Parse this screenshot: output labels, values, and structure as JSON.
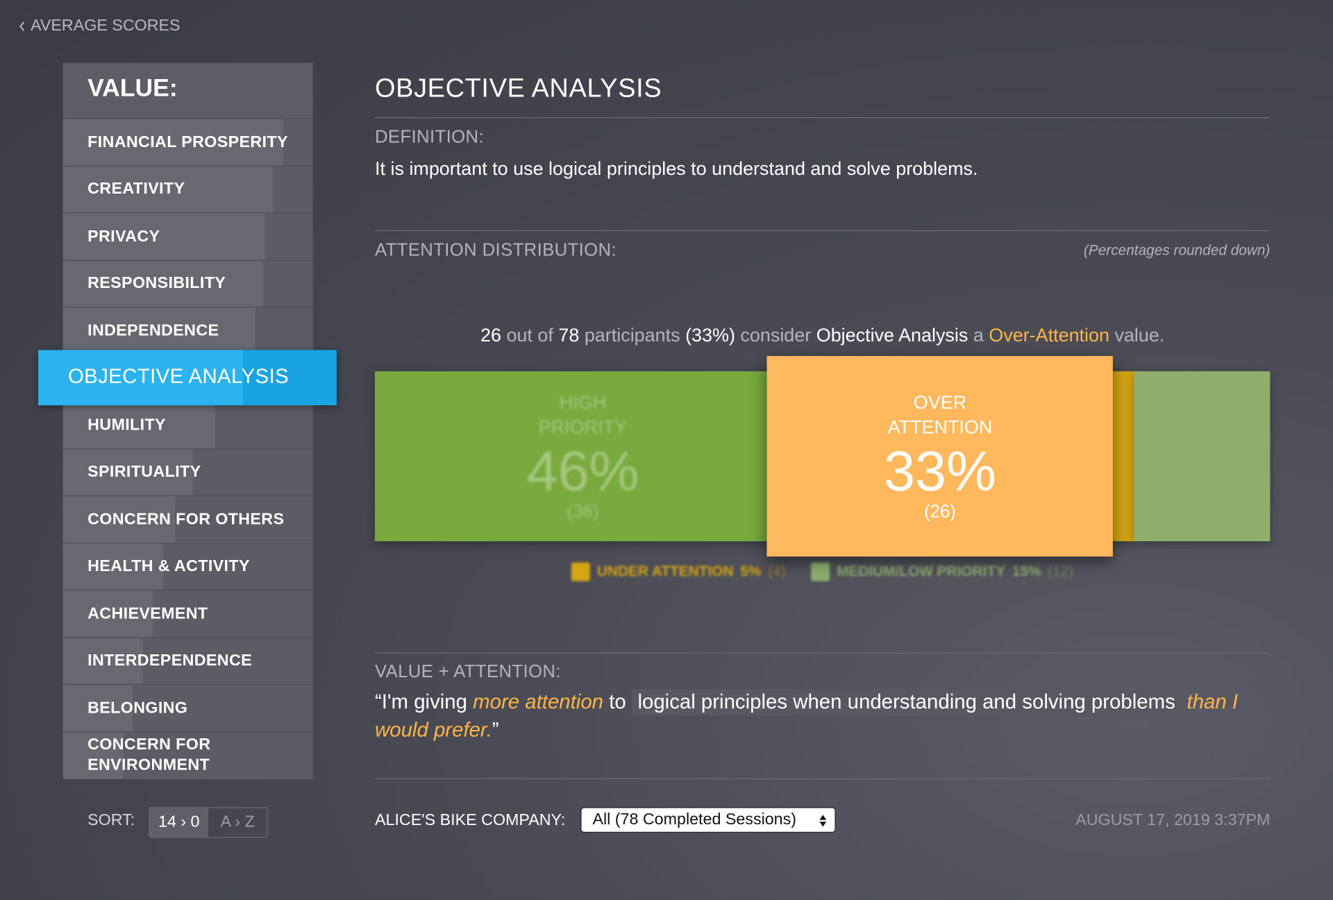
{
  "back_link": "AVERAGE SCORES",
  "sidebar": {
    "title": "VALUE:",
    "selected": 5,
    "items": [
      {
        "label": "FINANCIAL PROSPERITY",
        "bar": 88
      },
      {
        "label": "CREATIVITY",
        "bar": 84
      },
      {
        "label": "PRIVACY",
        "bar": 81
      },
      {
        "label": "RESPONSIBILITY",
        "bar": 80
      },
      {
        "label": "INDEPENDENCE",
        "bar": 77
      },
      {
        "label": "OBJECTIVE ANALYSIS",
        "bar": 72
      },
      {
        "label": "HUMILITY",
        "bar": 61
      },
      {
        "label": "SPIRITUALITY",
        "bar": 52
      },
      {
        "label": "CONCERN FOR OTHERS",
        "bar": 45
      },
      {
        "label": "HEALTH & ACTIVITY",
        "bar": 40
      },
      {
        "label": "ACHIEVEMENT",
        "bar": 36
      },
      {
        "label": "INTERDEPENDENCE",
        "bar": 32
      },
      {
        "label": "BELONGING",
        "bar": 28
      },
      {
        "label": "CONCERN FOR ENVIRONMENT",
        "bar": 24
      }
    ]
  },
  "sort": {
    "label": "SORT:",
    "options": [
      "14 › 0",
      "A › Z"
    ]
  },
  "main": {
    "title": "OBJECTIVE ANALYSIS",
    "definition_label": "DEFINITION:",
    "definition": "It is important to use logical principles to understand and solve problems.",
    "distribution_label": "ATTENTION DISTRIBUTION:",
    "distribution_note": "(Percentages rounded down)",
    "summary": [
      {
        "text": "26",
        "style": "white"
      },
      {
        "text": " out of ",
        "style": "dim"
      },
      {
        "text": "78",
        "style": "white"
      },
      {
        "text": " participants ",
        "style": "dim"
      },
      {
        "text": "(33%)",
        "style": "white"
      },
      {
        "text": " consider ",
        "style": "dim"
      },
      {
        "text": "Objective Analysis",
        "style": "white"
      },
      {
        "text": " a ",
        "style": "dim"
      },
      {
        "text": "Over-Attention",
        "style": "orange"
      },
      {
        "text": " value.",
        "style": "dim"
      }
    ],
    "distribution": {
      "selected": 1,
      "segments": [
        {
          "name": "HIGH PRIORITY",
          "value": 46,
          "value_label": "46%",
          "count_label": "(36)",
          "color": "#78aa3e"
        },
        {
          "name": "OVER ATTENTION",
          "value": 33,
          "value_label": "33%",
          "count_label": "(26)",
          "color": "#ffb85c"
        },
        {
          "name": "UNDER ATTENTION",
          "value": 5,
          "value_label": "5%",
          "count_label": "(4)",
          "color": "#d4a514"
        },
        {
          "name": "MEDIUM/LOW PRIORITY",
          "value": 15,
          "value_label": "15%",
          "count_label": "(12)",
          "color": "#8fae6e"
        }
      ]
    },
    "quote_label": "VALUE + ATTENTION:",
    "quote": [
      {
        "text": "“I'm giving ",
        "style": "plain"
      },
      {
        "text": "more attention",
        "style": "orange"
      },
      {
        "text": " to ",
        "style": "plain"
      },
      {
        "text": "logical principles when understanding and solving problems",
        "style": "box"
      },
      {
        "text": " ",
        "style": "plain"
      },
      {
        "text": "than I would prefer.",
        "style": "orange"
      },
      {
        "text": "”",
        "style": "plain"
      }
    ]
  },
  "footer": {
    "company_label": "ALICE'S BIKE COMPANY:",
    "session_select": "All (78 Completed Sessions)",
    "date": "AUGUST 17, 2019 3:37PM"
  }
}
